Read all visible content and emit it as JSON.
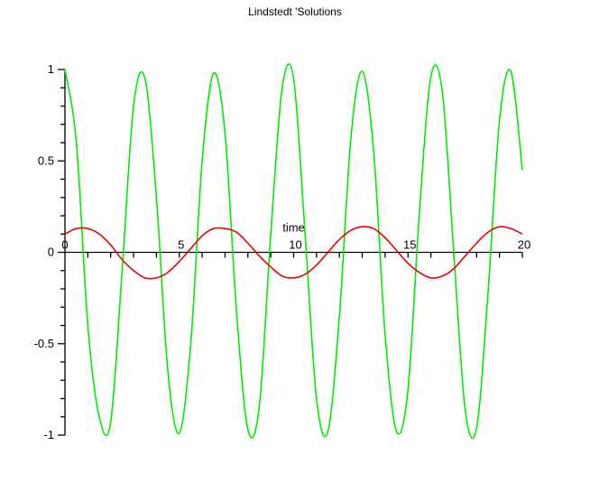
{
  "chart_data": {
    "type": "line",
    "title": "Lindstedt 'Solutions",
    "xlabel": "time",
    "ylabel": "",
    "xlim": [
      0,
      20
    ],
    "ylim": [
      -1,
      1
    ],
    "grid": false,
    "legend": "none",
    "x_ticks": [
      {
        "value": 0,
        "label": "0"
      },
      {
        "value": 5,
        "label": "5"
      },
      {
        "value": 10,
        "label": "10"
      },
      {
        "value": 15,
        "label": "15"
      },
      {
        "value": 20,
        "label": "20"
      }
    ],
    "y_ticks": [
      {
        "value": 1,
        "label": "1"
      },
      {
        "value": 0.5,
        "label": "0.5"
      },
      {
        "value": 0,
        "label": "0"
      },
      {
        "value": -0.5,
        "label": "-0.5"
      },
      {
        "value": -1,
        "label": "-1"
      }
    ],
    "x_minor_step": 1,
    "y_minor_step": 0.1,
    "series": [
      {
        "color": "#00ee00",
        "x": [
          0,
          0.5,
          1,
          1.5,
          2,
          2.5,
          3,
          3.5,
          4,
          4.5,
          5,
          5.5,
          6,
          6.5,
          7,
          7.5,
          8,
          8.5,
          9,
          9.5,
          10,
          10.5,
          11,
          11.5,
          12,
          12.5,
          13,
          13.5,
          14,
          14.5,
          15,
          15.5,
          16,
          16.5,
          17,
          17.5,
          18,
          18.5,
          19,
          19.5,
          20
        ],
        "y": [
          1.0,
          0.6,
          -0.4,
          -0.9,
          -0.93,
          -0.1,
          0.8,
          0.95,
          0.3,
          -0.65,
          -0.99,
          -0.5,
          0.5,
          0.98,
          0.65,
          -0.32,
          -0.97,
          -0.84,
          0.1,
          0.9,
          0.95,
          0.1,
          -0.8,
          -0.98,
          -0.35,
          0.62,
          0.99,
          0.55,
          -0.45,
          -0.98,
          -0.75,
          0.22,
          0.96,
          0.88,
          0.0,
          -0.86,
          -0.96,
          -0.22,
          0.72,
          0.99,
          0.45
        ]
      },
      {
        "color": "#ee0000",
        "x": [
          0,
          0.5,
          1,
          1.5,
          2,
          2.5,
          3,
          3.5,
          4,
          4.5,
          5,
          5.5,
          6,
          6.5,
          7,
          7.5,
          8,
          8.5,
          9,
          9.5,
          10,
          10.5,
          11,
          11.5,
          12,
          12.5,
          13,
          13.5,
          14,
          14.5,
          15,
          15.5,
          16,
          16.5,
          17,
          17.5,
          18,
          18.5,
          19,
          19.5,
          20
        ],
        "y": [
          0.1,
          0.13,
          0.13,
          0.1,
          0.04,
          -0.04,
          -0.1,
          -0.14,
          -0.14,
          -0.11,
          -0.05,
          0.02,
          0.09,
          0.13,
          0.13,
          0.11,
          0.05,
          -0.02,
          -0.08,
          -0.13,
          -0.14,
          -0.12,
          -0.07,
          0.0,
          0.07,
          0.12,
          0.14,
          0.13,
          0.08,
          0.01,
          -0.06,
          -0.11,
          -0.14,
          -0.13,
          -0.09,
          -0.02,
          0.05,
          0.11,
          0.14,
          0.13,
          0.1
        ]
      }
    ]
  }
}
